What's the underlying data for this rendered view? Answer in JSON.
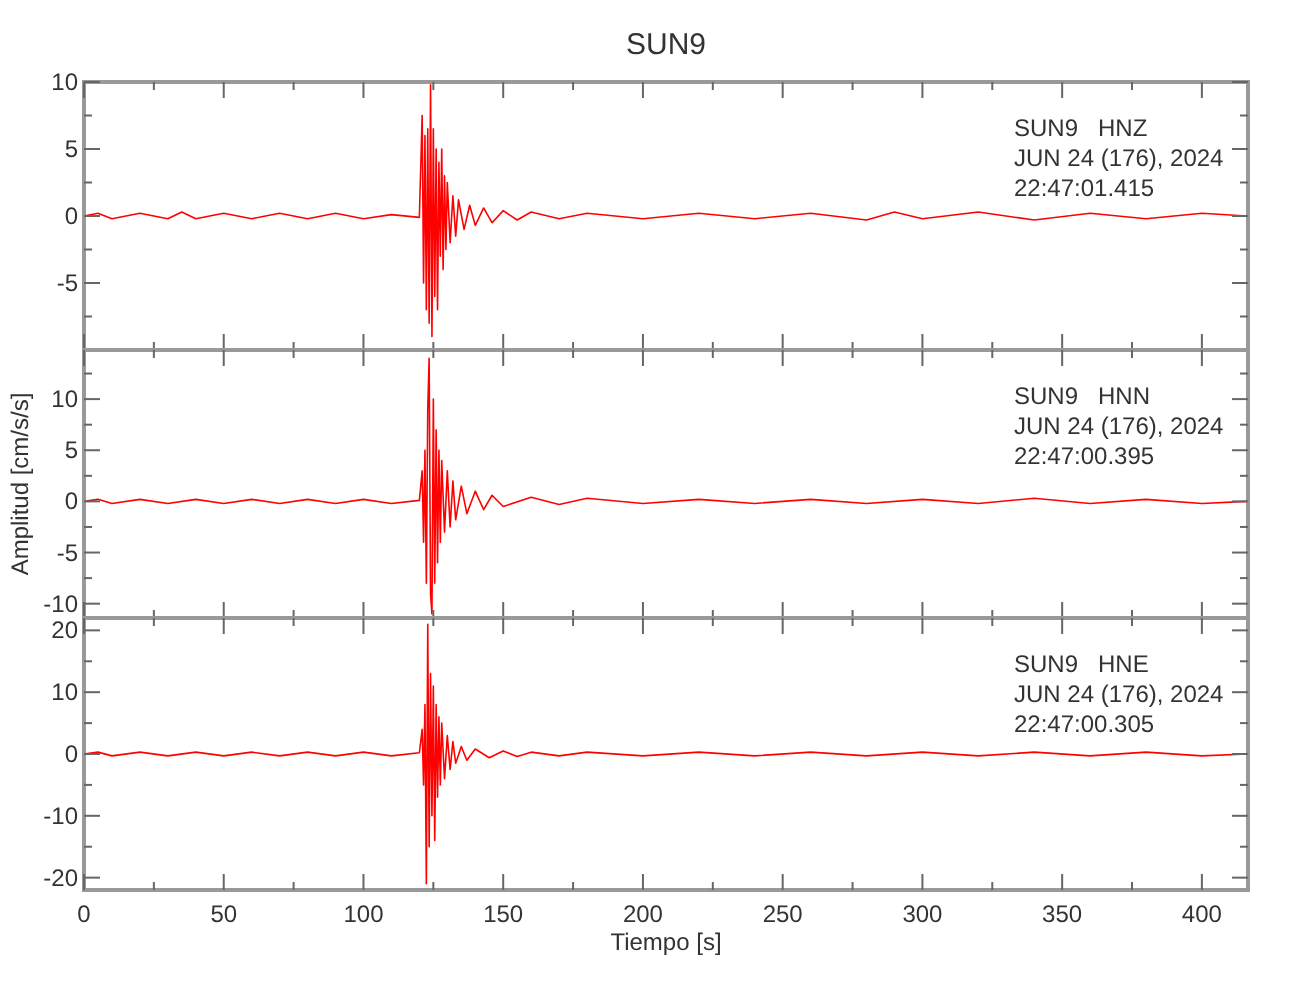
{
  "chart_data": [
    {
      "type": "line",
      "title": "SUN9",
      "annotations": [
        "SUN9   HNZ",
        "JUN 24 (176), 2024",
        "22:47:01.415"
      ],
      "xlim": [
        0,
        416.5
      ],
      "ylim": [
        -10,
        10
      ],
      "tick_labels": "y",
      "xticks": [
        0,
        {
          "value": 25,
          "label": null
        },
        50,
        {
          "value": 75,
          "label": null
        },
        100,
        {
          "value": 125,
          "label": null
        },
        150,
        {
          "value": 175,
          "label": null
        },
        200,
        {
          "value": 225,
          "label": null
        },
        250,
        {
          "value": 275,
          "label": null
        },
        300,
        {
          "value": 325,
          "label": null
        },
        350,
        {
          "value": 375,
          "label": null
        },
        400
      ],
      "yticks": [
        {
          "value": -7.5,
          "label": null
        },
        -5,
        {
          "value": -2.5,
          "label": null
        },
        0,
        {
          "value": 2.5,
          "label": null
        },
        5,
        {
          "value": 7.5,
          "label": null
        },
        10
      ],
      "series": [
        {
          "color": "#ff0000",
          "x": [
            0,
            5,
            10,
            20,
            30,
            35,
            40,
            50,
            60,
            70,
            80,
            90,
            100,
            110,
            120,
            121,
            121.5,
            122,
            122.5,
            123,
            123.5,
            124,
            124.5,
            125,
            125.5,
            126,
            126.5,
            127,
            127.5,
            128,
            128.5,
            129,
            129.5,
            130,
            131,
            132,
            133,
            134,
            136,
            138,
            140,
            143,
            146,
            150,
            155,
            160,
            170,
            180,
            200,
            220,
            240,
            260,
            280,
            290,
            300,
            320,
            340,
            360,
            380,
            400,
            416
          ],
          "values": [
            0,
            0.2,
            -0.2,
            0.2,
            -0.2,
            0.3,
            -0.2,
            0.2,
            -0.2,
            0.2,
            -0.2,
            0.2,
            -0.2,
            0.1,
            -0.1,
            7.5,
            -5,
            6,
            -7,
            6.5,
            -8,
            9.8,
            -9,
            6.5,
            -6,
            5,
            -7,
            4,
            -3,
            5,
            -4,
            3,
            -2.5,
            2.5,
            -2,
            1.5,
            -1.5,
            1.2,
            -1,
            0.8,
            -0.7,
            0.6,
            -0.5,
            0.4,
            -0.3,
            0.3,
            -0.2,
            0.2,
            -0.2,
            0.2,
            -0.2,
            0.2,
            -0.3,
            0.3,
            -0.2,
            0.3,
            -0.3,
            0.2,
            -0.2,
            0.2,
            0
          ]
        }
      ]
    },
    {
      "type": "line",
      "ylabel": "Amplitud [cm/s/s]",
      "annotations": [
        "SUN9   HNN",
        "JUN 24 (176), 2024",
        "22:47:00.395"
      ],
      "xlim": [
        0,
        416.5
      ],
      "ylim": [
        -11.4,
        14.8
      ],
      "tick_labels": "y",
      "xticks": [
        0,
        {
          "value": 25,
          "label": null
        },
        50,
        {
          "value": 75,
          "label": null
        },
        100,
        {
          "value": 125,
          "label": null
        },
        150,
        {
          "value": 175,
          "label": null
        },
        200,
        {
          "value": 225,
          "label": null
        },
        250,
        {
          "value": 275,
          "label": null
        },
        300,
        {
          "value": 325,
          "label": null
        },
        350,
        {
          "value": 375,
          "label": null
        },
        400
      ],
      "yticks": [
        -10,
        {
          "value": -7.5,
          "label": null
        },
        -5,
        {
          "value": -2.5,
          "label": null
        },
        0,
        {
          "value": 2.5,
          "label": null
        },
        5,
        {
          "value": 7.5,
          "label": null
        },
        10,
        {
          "value": 12.5,
          "label": null
        }
      ],
      "series": [
        {
          "color": "#ff0000",
          "x": [
            0,
            5,
            10,
            20,
            30,
            40,
            50,
            60,
            70,
            80,
            90,
            100,
            110,
            120,
            121,
            121.5,
            122,
            122.5,
            123,
            123.5,
            124,
            124.5,
            125,
            125.5,
            126,
            126.5,
            127,
            127.5,
            128,
            129,
            130,
            131,
            132,
            133,
            135,
            137,
            140,
            143,
            146,
            150,
            160,
            170,
            180,
            200,
            220,
            240,
            260,
            280,
            300,
            320,
            340,
            360,
            380,
            400,
            416
          ],
          "values": [
            0,
            0.2,
            -0.2,
            0.2,
            -0.2,
            0.2,
            -0.2,
            0.2,
            -0.2,
            0.2,
            -0.2,
            0.2,
            -0.2,
            0.1,
            3,
            -4,
            5,
            -8,
            9,
            14,
            -9,
            -11,
            10,
            -8,
            7,
            -6,
            5,
            -4,
            4,
            -3,
            3,
            -2.5,
            2,
            -1.8,
            1.5,
            -1.2,
            1,
            -0.8,
            0.6,
            -0.5,
            0.4,
            -0.3,
            0.3,
            -0.2,
            0.2,
            -0.2,
            0.2,
            -0.2,
            0.2,
            -0.2,
            0.3,
            -0.2,
            0.2,
            -0.2,
            0
          ]
        }
      ]
    },
    {
      "type": "line",
      "xlabel": "Tiempo [s]",
      "annotations": [
        "SUN9   HNE",
        "JUN 24 (176), 2024",
        "22:47:00.305"
      ],
      "xlim": [
        0,
        416.5
      ],
      "ylim": [
        -22,
        22
      ],
      "xticks": [
        0,
        {
          "value": 25,
          "label": null
        },
        50,
        {
          "value": 75,
          "label": null
        },
        100,
        {
          "value": 125,
          "label": null
        },
        150,
        {
          "value": 175,
          "label": null
        },
        200,
        {
          "value": 225,
          "label": null
        },
        250,
        {
          "value": 275,
          "label": null
        },
        300,
        {
          "value": 325,
          "label": null
        },
        350,
        {
          "value": 375,
          "label": null
        },
        400
      ],
      "yticks": [
        -20,
        {
          "value": -15,
          "label": null
        },
        -10,
        {
          "value": -5,
          "label": null
        },
        0,
        {
          "value": 5,
          "label": null
        },
        10,
        {
          "value": 15,
          "label": null
        },
        20
      ],
      "series": [
        {
          "color": "#ff0000",
          "x": [
            0,
            5,
            10,
            20,
            30,
            40,
            50,
            60,
            70,
            80,
            90,
            100,
            110,
            120,
            121,
            121.5,
            122,
            122.5,
            123,
            123.5,
            124,
            124.5,
            125,
            125.5,
            126,
            126.5,
            127,
            127.5,
            128,
            129,
            130,
            131,
            132,
            133,
            135,
            137,
            140,
            145,
            150,
            155,
            160,
            170,
            180,
            200,
            220,
            240,
            260,
            280,
            300,
            320,
            340,
            360,
            380,
            400,
            416
          ],
          "values": [
            0,
            0.3,
            -0.3,
            0.3,
            -0.3,
            0.3,
            -0.3,
            0.3,
            -0.3,
            0.3,
            -0.3,
            0.3,
            -0.3,
            0.2,
            4,
            -5,
            8,
            -21,
            21,
            -15,
            13,
            -10,
            11,
            -14,
            8,
            -7,
            6,
            -5,
            5,
            -4,
            3,
            -2.5,
            2,
            -1.5,
            1.2,
            -1,
            0.8,
            -0.6,
            0.5,
            -0.4,
            0.3,
            -0.3,
            0.3,
            -0.3,
            0.3,
            -0.3,
            0.3,
            -0.3,
            0.3,
            -0.3,
            0.3,
            -0.3,
            0.3,
            -0.3,
            0
          ]
        }
      ]
    }
  ]
}
